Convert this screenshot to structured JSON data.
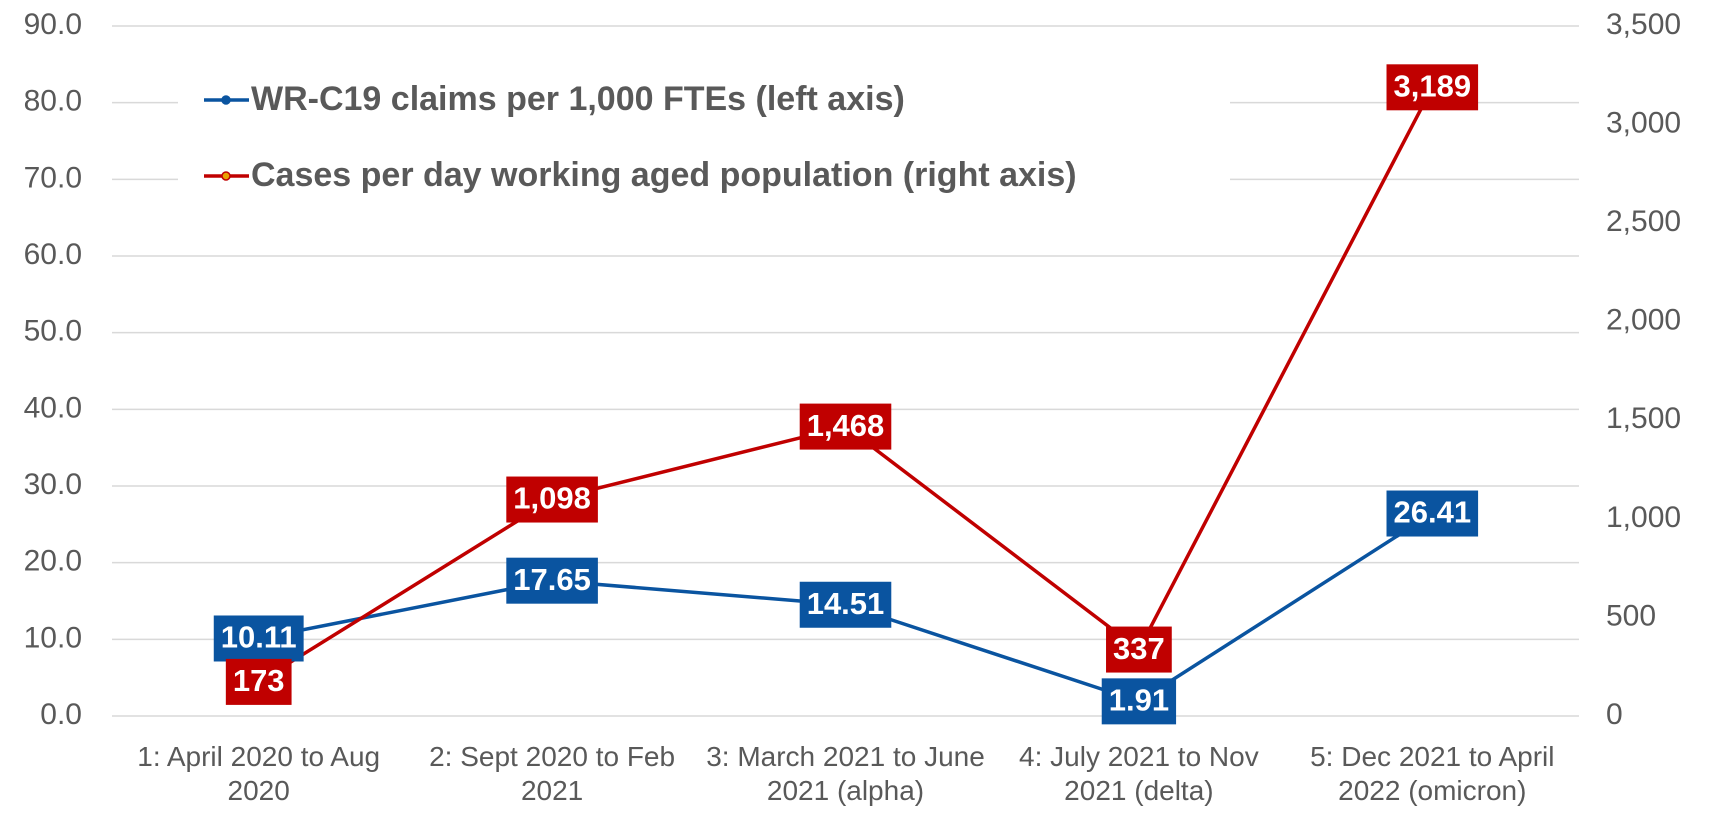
{
  "chart_data": {
    "type": "line",
    "categories": [
      "1: April 2020 to Aug 2020",
      "2: Sept 2020 to Feb 2021",
      "3: March 2021 to June 2021 (alpha)",
      "4: July 2021 to Nov 2021 (delta)",
      "5: Dec 2021 to April 2022 (omicron)"
    ],
    "series": [
      {
        "name": "WR-C19 claims per 1,000 FTEs (left axis)",
        "color": "#0a54a0",
        "values": [
          10.11,
          17.65,
          14.51,
          1.91,
          26.41
        ]
      },
      {
        "name": "Cases per day working aged population (right axis)",
        "color": "#c00000",
        "axis": "y2",
        "values": [
          173,
          1098,
          1468,
          337,
          3189
        ],
        "value_labels": [
          "173",
          "1,098",
          "1,468",
          "337",
          "3,189"
        ]
      }
    ],
    "ylim": [
      0,
      90
    ],
    "yticks": [
      {
        "value": 0,
        "label": "0.0"
      },
      {
        "value": 10,
        "label": "10.0"
      },
      {
        "value": 20,
        "label": "20.0"
      },
      {
        "value": 30,
        "label": "30.0"
      },
      {
        "value": 40,
        "label": "40.0"
      },
      {
        "value": 50,
        "label": "50.0"
      },
      {
        "value": 60,
        "label": "60.0"
      },
      {
        "value": 70,
        "label": "70.0"
      },
      {
        "value": 80,
        "label": "80.0"
      },
      {
        "value": 90,
        "label": "90.0"
      }
    ],
    "y2lim": [
      0,
      3500
    ],
    "y2ticks": [
      0,
      500,
      {
        "value": 1000,
        "label": "1,000"
      },
      {
        "value": 1500,
        "label": "1,500"
      },
      {
        "value": 2000,
        "label": "2,000"
      },
      {
        "value": 2500,
        "label": "2,500"
      },
      {
        "value": 3000,
        "label": "3,000"
      },
      {
        "value": 3500,
        "label": "3,500"
      }
    ],
    "grid": true,
    "legend": "top-left"
  }
}
